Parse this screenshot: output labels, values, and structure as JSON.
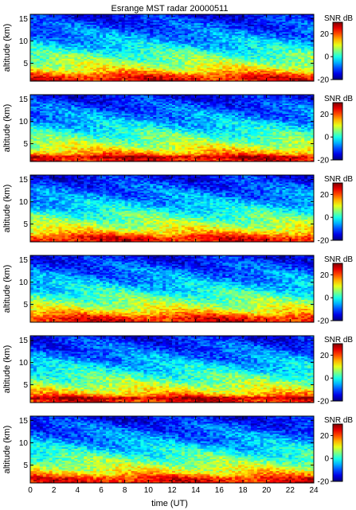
{
  "chart_data": {
    "type": "heatmap",
    "title": "Esrange MST radar 20000511",
    "xlabel": "time (UT)",
    "ylabel": "altitude (km)",
    "xlim": [
      0,
      24
    ],
    "ylim": [
      1,
      16
    ],
    "xticks": [
      0,
      2,
      4,
      6,
      8,
      10,
      12,
      14,
      16,
      18,
      20,
      22,
      24
    ],
    "yticks": [
      5,
      10,
      15
    ],
    "colorbar": {
      "label": "SNR dB",
      "range": [
        -20,
        30
      ],
      "ticks": [
        -20,
        0,
        20
      ],
      "colormap": "jet"
    },
    "panel_count": 6,
    "snr_profile": [
      {
        "altitude_km": 1.0,
        "snr_db": 24
      },
      {
        "altitude_km": 2.0,
        "snr_db": 23
      },
      {
        "altitude_km": 3.0,
        "snr_db": 15
      },
      {
        "altitude_km": 4.0,
        "snr_db": 10
      },
      {
        "altitude_km": 5.0,
        "snr_db": 7
      },
      {
        "altitude_km": 6.0,
        "snr_db": 4
      },
      {
        "altitude_km": 7.0,
        "snr_db": 2
      },
      {
        "altitude_km": 8.0,
        "snr_db": -1
      },
      {
        "altitude_km": 9.0,
        "snr_db": -3
      },
      {
        "altitude_km": 10.0,
        "snr_db": -5
      },
      {
        "altitude_km": 11.0,
        "snr_db": -7
      },
      {
        "altitude_km": 12.0,
        "snr_db": -8
      },
      {
        "altitude_km": 13.0,
        "snr_db": -10
      },
      {
        "altitude_km": 14.0,
        "snr_db": -11
      },
      {
        "altitude_km": 15.0,
        "snr_db": -13
      },
      {
        "altitude_km": 16.0,
        "snr_db": -14
      }
    ]
  }
}
